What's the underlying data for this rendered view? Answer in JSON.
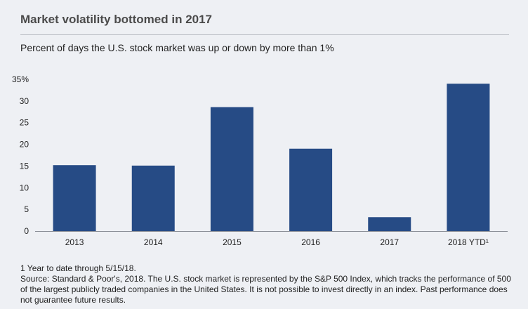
{
  "title": "Market volatility bottomed in 2017",
  "subtitle": "Percent of days the U.S. stock market was up or down by more than 1%",
  "colors": {
    "bar": "#264b85",
    "axis": "#888c94",
    "background": "#eef0f4"
  },
  "chart_data": {
    "type": "bar",
    "title": "Market volatility bottomed in 2017",
    "subtitle": "Percent of days the U.S. stock market was up or down by more than 1%",
    "categories": [
      "2013",
      "2014",
      "2015",
      "2016",
      "2017",
      "2018 YTD¹"
    ],
    "values": [
      15.2,
      15.1,
      28.6,
      19.0,
      3.2,
      34.0
    ],
    "yticks": [
      "0",
      "5",
      "10",
      "15",
      "20",
      "25",
      "30",
      "35%"
    ],
    "ylim": [
      0,
      35
    ],
    "grid": false,
    "legend": "none"
  },
  "footnotes": {
    "note1": "1 Year to date through 5/15/18.",
    "source": "Source: Standard & Poor's, 2018. The U.S. stock market is represented by the S&P 500 Index, which tracks the performance of 500 of the largest publicly traded companies in the United States. It is not possible to invest directly in an index. Past performance does not guarantee future results."
  }
}
